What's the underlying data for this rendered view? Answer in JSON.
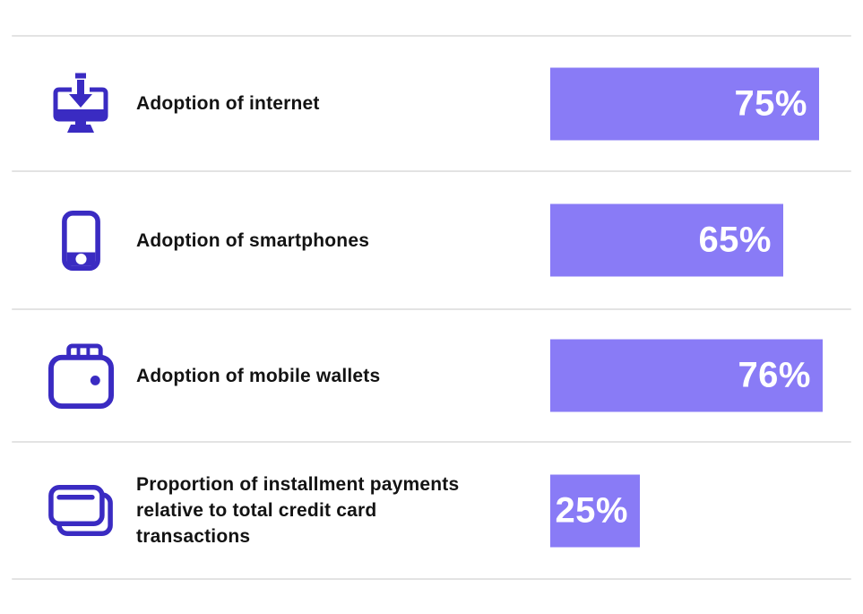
{
  "chart_data": {
    "type": "bar",
    "orientation": "horizontal",
    "title": "",
    "categories": [
      "Adoption of internet",
      "Adoption of smartphones",
      "Adoption of mobile wallets",
      "Proportion of installment payments relative to total credit card transactions"
    ],
    "values": [
      75,
      65,
      76,
      25
    ],
    "value_labels": [
      "75%",
      "65%",
      "76%",
      "25%"
    ],
    "xlim": [
      0,
      100
    ],
    "grid": false,
    "legend": "none",
    "bar_color": "#897BF6",
    "icon_color": "#3A2BC2",
    "label_color": "#131313",
    "value_text_color": "#FFFFFF",
    "divider_color": "#E3E3E3",
    "icons": [
      "monitor-download-icon",
      "smartphone-icon",
      "wallet-icon",
      "credit-cards-icon"
    ]
  },
  "rows": [
    {
      "label": "Adoption of internet",
      "value": 75,
      "value_label": "75%",
      "icon": "monitor-download-icon"
    },
    {
      "label": "Adoption of smartphones",
      "value": 65,
      "value_label": "65%",
      "icon": "smartphone-icon"
    },
    {
      "label": "Adoption of mobile wallets",
      "value": 76,
      "value_label": "76%",
      "icon": "wallet-icon"
    },
    {
      "label": "Proportion of installment payments relative to total credit card transactions",
      "value": 25,
      "value_label": "25%",
      "icon": "credit-cards-icon"
    }
  ]
}
